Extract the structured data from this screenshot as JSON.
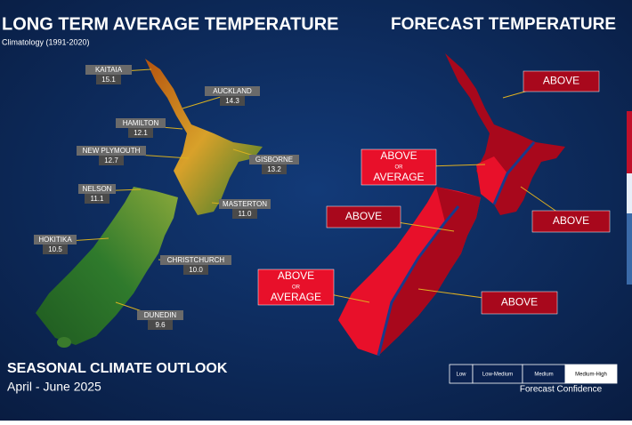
{
  "left": {
    "title": "LONG TERM AVERAGE TEMPERATURE",
    "subtitle": "Climatology (1991-2020)",
    "cities": [
      {
        "name": "KAITAIA",
        "value": "15.1"
      },
      {
        "name": "AUCKLAND",
        "value": "14.3"
      },
      {
        "name": "HAMILTON",
        "value": "12.1"
      },
      {
        "name": "NEW PLYMOUTH",
        "value": "12.7"
      },
      {
        "name": "GISBORNE",
        "value": "13.2"
      },
      {
        "name": "NELSON",
        "value": "11.1"
      },
      {
        "name": "MASTERTON",
        "value": "11.0"
      },
      {
        "name": "HOKITIKA",
        "value": "10.5"
      },
      {
        "name": "CHRISTCHURCH",
        "value": "10.0"
      },
      {
        "name": "DUNEDIN",
        "value": "9.6"
      }
    ]
  },
  "right": {
    "title": "FORECAST TEMPERATURE",
    "regions": [
      {
        "lines": [
          "ABOVE"
        ]
      },
      {
        "lines": [
          "ABOVE",
          "OR",
          "AVERAGE"
        ]
      },
      {
        "lines": [
          "ABOVE"
        ]
      },
      {
        "lines": [
          "ABOVE"
        ]
      },
      {
        "lines": [
          "ABOVE",
          "OR",
          "AVERAGE"
        ]
      },
      {
        "lines": [
          "ABOVE"
        ]
      }
    ]
  },
  "footer": {
    "title": "SEASONAL CLIMATE OUTLOOK",
    "period": "April - June 2025"
  },
  "confidence": {
    "levels": [
      "Low",
      "Low-Medium",
      "Medium",
      "Medium-High"
    ],
    "label": "Forecast Confidence"
  }
}
